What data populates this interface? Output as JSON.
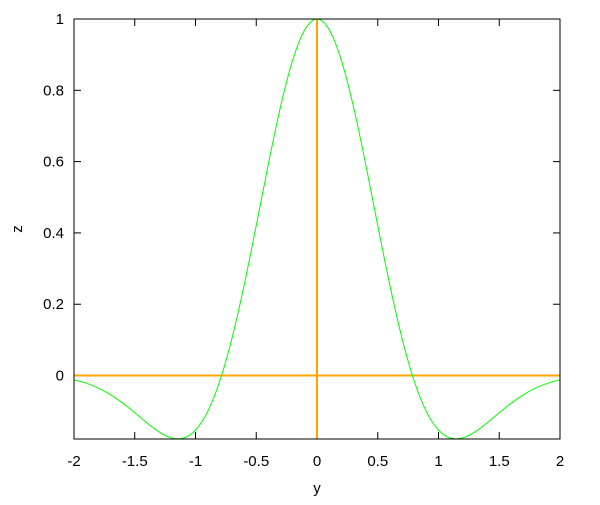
{
  "chart_data": {
    "type": "line",
    "title": "",
    "xlabel": "y",
    "ylabel": "z",
    "xlim": [
      -2,
      2
    ],
    "ylim": [
      -0.178,
      1
    ],
    "xticks": [
      "-2",
      "-1.5",
      "-1",
      "-0.5",
      "0",
      "0.5",
      "1",
      "1.5",
      "2"
    ],
    "xtick_values": [
      -2,
      -1.5,
      -1,
      -0.5,
      0,
      0.5,
      1,
      1.5,
      2
    ],
    "yticks": [
      "0",
      "0.2",
      "0.4",
      "0.6",
      "0.8",
      "1"
    ],
    "ytick_values": [
      0,
      0.2,
      0.4,
      0.6,
      0.8,
      1
    ],
    "grid": false,
    "legend": "none",
    "zero_axes": true,
    "colors": {
      "series": "#00ff00",
      "zero_axes": "#ffa500",
      "border": "#000000"
    },
    "series": [
      {
        "x": [
          -2,
          -1.9,
          -1.8,
          -1.7,
          -1.6,
          -1.5,
          -1.4,
          -1.3,
          -1.2,
          -1.1,
          -1,
          -0.9,
          -0.8,
          -0.7,
          -0.6,
          -0.5,
          -0.4,
          -0.3,
          -0.2,
          -0.1,
          0,
          0.1,
          0.2,
          0.3,
          0.4,
          0.5,
          0.6,
          0.7,
          0.8,
          0.9,
          1,
          1.1,
          1.2,
          1.3,
          1.4,
          1.5,
          1.6,
          1.7,
          1.8,
          1.9,
          2
        ],
        "y": [
          -0.012,
          -0.0214,
          -0.0351,
          -0.0537,
          -0.0772,
          -0.1043,
          -0.1327,
          -0.1581,
          -0.1747,
          -0.1755,
          -0.1531,
          -0.1011,
          -0.0154,
          0.1041,
          0.2528,
          0.4208,
          0.5937,
          0.7543,
          0.8849,
          0.9703,
          1,
          0.9703,
          0.8849,
          0.7543,
          0.5937,
          0.4208,
          0.2528,
          0.1041,
          -0.0154,
          -0.1011,
          -0.1531,
          -0.1755,
          -0.1747,
          -0.1581,
          -0.1327,
          -0.1043,
          -0.0772,
          -0.0537,
          -0.0351,
          -0.0214,
          -0.012
        ]
      }
    ]
  }
}
